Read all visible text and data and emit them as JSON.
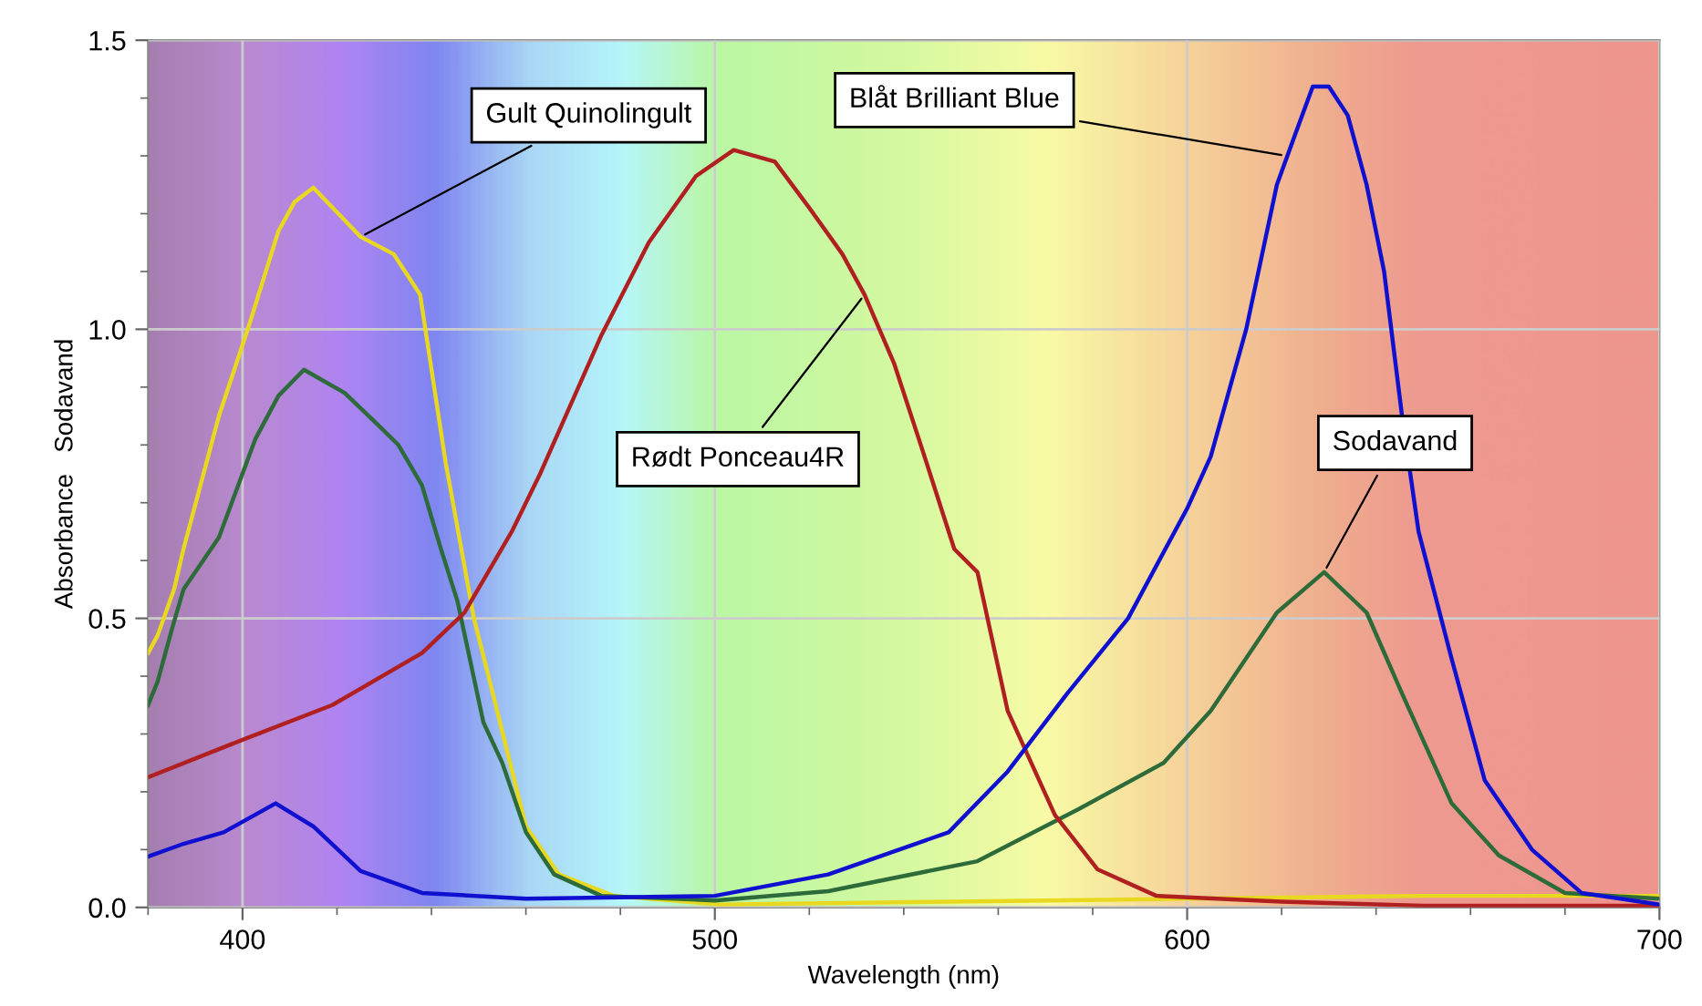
{
  "chart_data": {
    "type": "line",
    "xlabel": "Wavelength (nm)",
    "ylabel": "Absorbance   Sodavand",
    "xlim": [
      380,
      700
    ],
    "ylim": [
      0,
      1.5
    ],
    "xticks": [
      {
        "value": 380,
        "label": null
      },
      400,
      {
        "value": 420,
        "label": null
      },
      {
        "value": 440,
        "label": null
      },
      {
        "value": 460,
        "label": null
      },
      {
        "value": 480,
        "label": null
      },
      500,
      {
        "value": 520,
        "label": null
      },
      {
        "value": 540,
        "label": null
      },
      {
        "value": 560,
        "label": null
      },
      {
        "value": 580,
        "label": null
      },
      600,
      {
        "value": 620,
        "label": null
      },
      {
        "value": 640,
        "label": null
      },
      {
        "value": 660,
        "label": null
      },
      {
        "value": 680,
        "label": null
      },
      700
    ],
    "yticks": [
      {
        "value": 0,
        "label": "0.0"
      },
      {
        "value": 0.1,
        "label": null
      },
      {
        "value": 0.2,
        "label": null
      },
      {
        "value": 0.3,
        "label": null
      },
      {
        "value": 0.4,
        "label": null
      },
      0.5,
      {
        "value": 0.6,
        "label": null
      },
      {
        "value": 0.7,
        "label": null
      },
      {
        "value": 0.8,
        "label": null
      },
      {
        "value": 0.9,
        "label": null
      },
      {
        "value": 1,
        "label": "1.0"
      },
      {
        "value": 1.1,
        "label": null
      },
      {
        "value": 1.2,
        "label": null
      },
      {
        "value": 1.3,
        "label": null
      },
      {
        "value": 1.4,
        "label": null
      },
      1.5
    ],
    "grid": true,
    "legend": false,
    "marker": "none",
    "line_style": "solid",
    "series": [
      {
        "color": "#e8d820",
        "x": [
          380,
          382,
          385.5,
          387.5,
          395,
          401.5,
          407.6,
          411,
          415,
          425,
          432,
          437.6,
          443,
          449,
          453,
          460,
          467,
          478.6,
          501,
          550,
          600,
          650,
          700
        ],
        "values": [
          0.44,
          0.47,
          0.55,
          0.62,
          0.85,
          1.01,
          1.17,
          1.22,
          1.245,
          1.16,
          1.13,
          1.06,
          0.77,
          0.5,
          0.37,
          0.14,
          0.057,
          0.02,
          0.005,
          0.01,
          0.015,
          0.02,
          0.02
        ]
      },
      {
        "color": "#2e6b3a",
        "x": [
          380,
          382,
          385,
          387.5,
          395,
          402.7,
          407.6,
          413,
          421.6,
          428,
          433,
          438,
          442,
          445.5,
          451,
          455,
          460,
          466,
          476,
          500,
          524,
          555.6,
          577,
          595,
          605,
          619,
          629,
          638,
          645.5,
          656,
          666,
          680,
          700
        ],
        "values": [
          0.35,
          0.39,
          0.48,
          0.55,
          0.64,
          0.81,
          0.885,
          0.93,
          0.89,
          0.84,
          0.8,
          0.73,
          0.62,
          0.53,
          0.32,
          0.25,
          0.13,
          0.057,
          0.02,
          0.012,
          0.028,
          0.08,
          0.17,
          0.25,
          0.34,
          0.51,
          0.58,
          0.51,
          0.37,
          0.18,
          0.09,
          0.025,
          0.015
        ]
      },
      {
        "color": "#b02020",
        "x": [
          380,
          400,
          419,
          438,
          447,
          457,
          463,
          476,
          486,
          496,
          504,
          512.7,
          520,
          527,
          531.7,
          538,
          544,
          550.7,
          555.6,
          562,
          572,
          581,
          593.5,
          620,
          650,
          700
        ],
        "values": [
          0.225,
          0.29,
          0.35,
          0.44,
          0.51,
          0.65,
          0.75,
          0.99,
          1.15,
          1.265,
          1.31,
          1.29,
          1.21,
          1.13,
          1.06,
          0.94,
          0.79,
          0.62,
          0.58,
          0.34,
          0.16,
          0.066,
          0.02,
          0.01,
          0.003,
          0.003
        ]
      },
      {
        "color": "#1010d0",
        "x": [
          380,
          387.5,
          396,
          407,
          415,
          425,
          438,
          460,
          500,
          524,
          549.5,
          562,
          574.6,
          587.5,
          600,
          605,
          612.5,
          619,
          623,
          626.6,
          630,
          634,
          638,
          641.7,
          645.5,
          649,
          656,
          663,
          673,
          683.5,
          700
        ],
        "values": [
          0.088,
          0.11,
          0.13,
          0.18,
          0.14,
          0.063,
          0.025,
          0.015,
          0.02,
          0.057,
          0.13,
          0.235,
          0.37,
          0.5,
          0.69,
          0.78,
          1.0,
          1.25,
          1.34,
          1.42,
          1.42,
          1.37,
          1.25,
          1.1,
          0.85,
          0.65,
          0.43,
          0.22,
          0.1,
          0.025,
          0.005
        ]
      }
    ],
    "annotations": [
      {
        "text": "Gult Quinolingult",
        "x": 425,
        "y": 1.16
      },
      {
        "text": "Rødt Ponceau4R",
        "x": 531.7,
        "y": 1.06
      },
      {
        "text": "Blåt Brilliant Blue",
        "x": 621,
        "y": 1.3
      },
      {
        "text": "Sodavand",
        "x": 629,
        "y": 0.58
      }
    ]
  }
}
